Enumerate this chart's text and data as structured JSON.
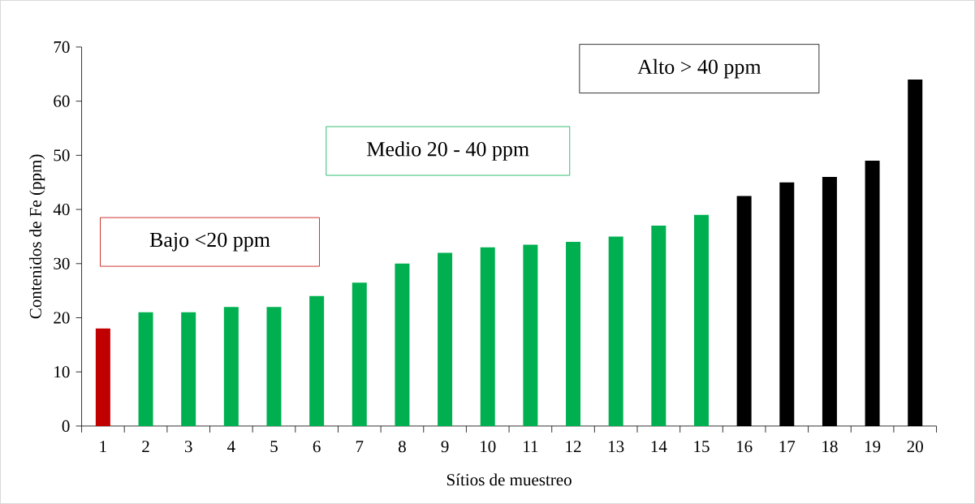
{
  "chart_data": {
    "type": "bar",
    "xlabel": "Sítios de muestreo",
    "ylabel": "Contenidos de Fe (ppm)",
    "categories": [
      "1",
      "2",
      "3",
      "4",
      "5",
      "6",
      "7",
      "8",
      "9",
      "10",
      "11",
      "12",
      "13",
      "14",
      "15",
      "16",
      "17",
      "18",
      "19",
      "20"
    ],
    "values": [
      18,
      21,
      21,
      22,
      22,
      24,
      26.5,
      30,
      32,
      33,
      33.5,
      34,
      35,
      37,
      39,
      42.5,
      45,
      46,
      49,
      64
    ],
    "colors": [
      "#c00000",
      "#00b050",
      "#00b050",
      "#00b050",
      "#00b050",
      "#00b050",
      "#00b050",
      "#00b050",
      "#00b050",
      "#00b050",
      "#00b050",
      "#00b050",
      "#00b050",
      "#00b050",
      "#00b050",
      "#000000",
      "#000000",
      "#000000",
      "#000000",
      "#000000"
    ],
    "ylim": [
      0,
      70
    ],
    "yticks": [
      0,
      10,
      20,
      30,
      40,
      50,
      60,
      70
    ],
    "grid": false,
    "annotations": [
      "Bajo <20 ppm",
      "Medio 20 - 40 ppm",
      "Alto > 40 ppm"
    ]
  }
}
